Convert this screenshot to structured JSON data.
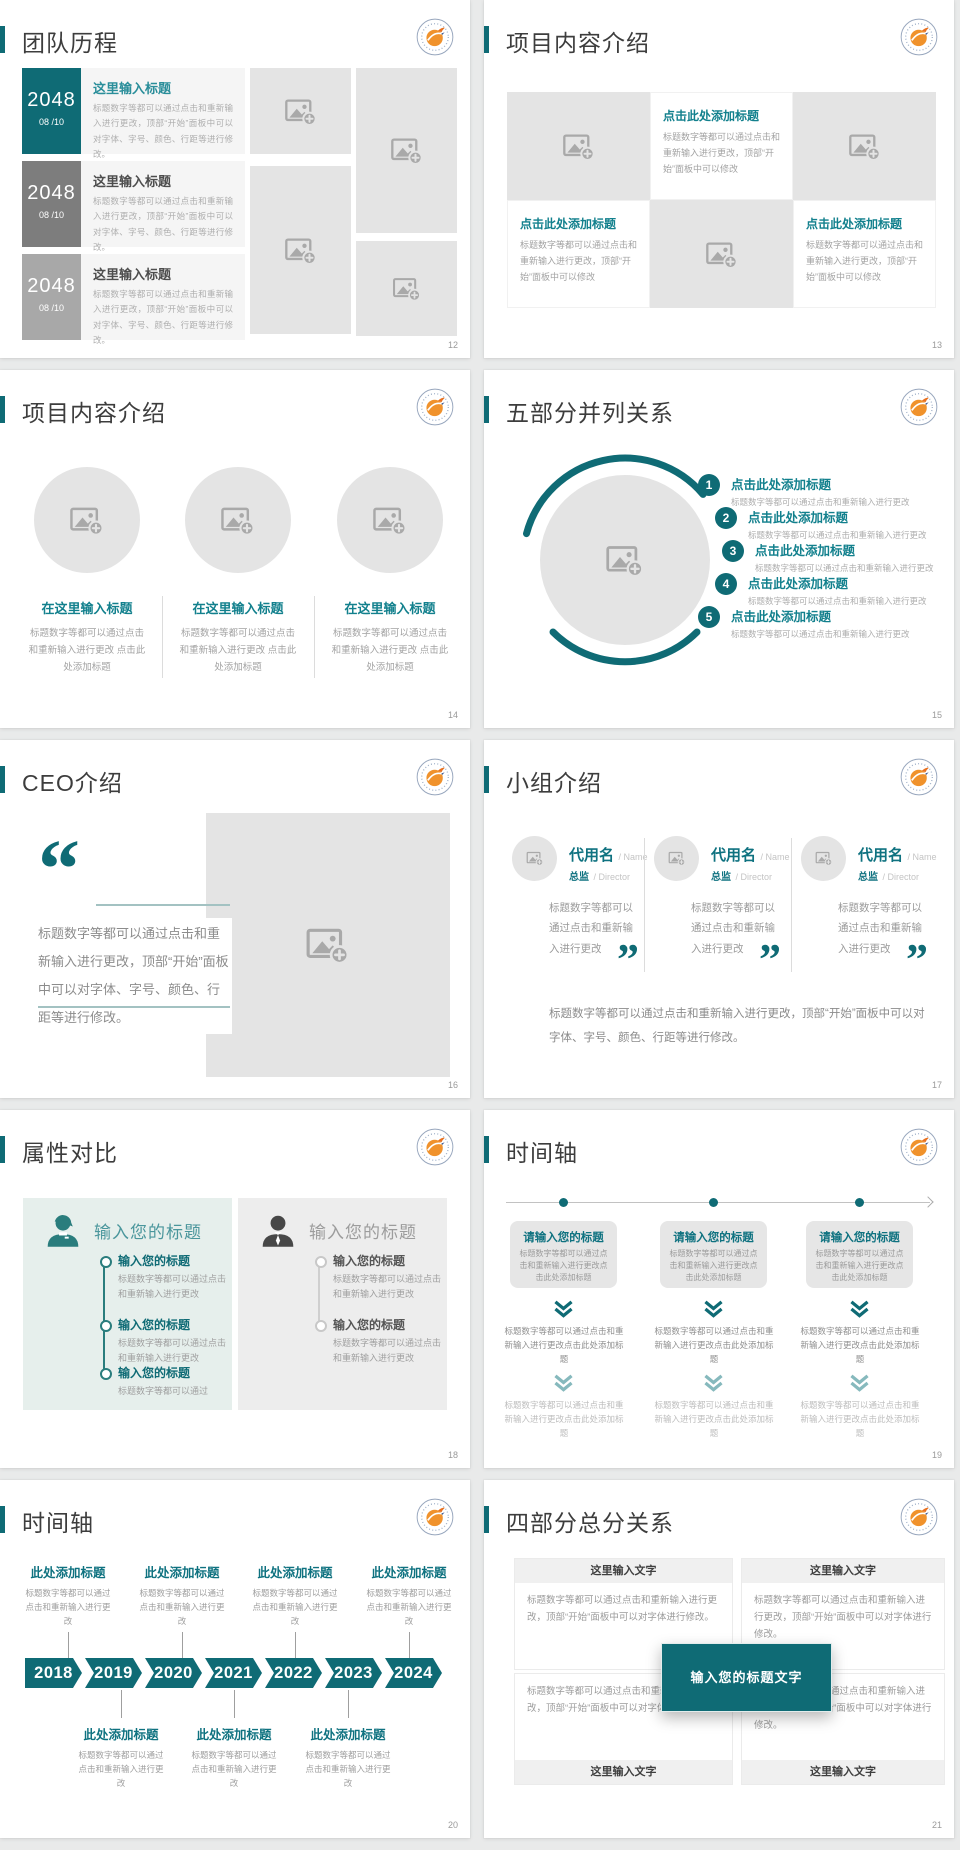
{
  "app": {
    "background": "#e9eaea",
    "accent_color": "#0f6b75"
  },
  "common": {
    "quote_open": "“",
    "quote_close": "”",
    "heading_here": "这里输入标题",
    "heading_click": "点击此处添加标题",
    "heading_add": "此处添加标题",
    "heading_your": "输入您的标题",
    "heading_please": "请输入您的标题",
    "heading_text": "这里输入文字",
    "heading_center": "输入您的标题文字",
    "heading_circle": "在这里输入标题",
    "body_full": "标题数字等都可以通过点击和重新输入进行更改，顶部“开始”面板中可以对字体、字号、颜色、行距等进行修改。",
    "body_mid": "标题数字等都可以通过点击和重新输入进行更改，顶部“开始”面板中可以修改",
    "body_short": "标题数字等都可以通过点击和重新输入进行更改",
    "body_click": "标题数字等都可以通过点击和重新输入进行更改点击此处添加标题",
    "body_s14": "标题数字等都可以通过点击和重新输入进行更改 点击此处添加标题",
    "body_font": "标题数字等都可以通过点击和重新输入进行更改，顶部“开始”面板中可以对字体进行修改。",
    "body_tail": "标题数字等都可以通过"
  },
  "slides": {
    "s12": {
      "title": "团队历程",
      "page": "12",
      "rows": [
        {
          "year": "2048",
          "date": "08 /10"
        },
        {
          "year": "2048",
          "date": "08 /10"
        },
        {
          "year": "2048",
          "date": "08 /10"
        }
      ]
    },
    "s13": {
      "title": "项目内容介绍",
      "page": "13"
    },
    "s14": {
      "title": "项目内容介绍",
      "page": "14"
    },
    "s15": {
      "title": "五部分并列关系",
      "page": "15",
      "numbers": [
        "1",
        "2",
        "3",
        "4",
        "5"
      ]
    },
    "s16": {
      "title": "CEO介绍",
      "page": "16"
    },
    "s17": {
      "title": "小组介绍",
      "page": "17",
      "name": "代用名",
      "name_suffix": "/ Name",
      "role": "总监",
      "role_suffix": "/ Director"
    },
    "s18": {
      "title": "属性对比",
      "page": "18"
    },
    "s19": {
      "title": "时间轴",
      "page": "19"
    },
    "s20": {
      "title": "时间轴",
      "page": "20",
      "years": [
        "2018",
        "2019",
        "2020",
        "2021",
        "2022",
        "2023",
        "2024"
      ]
    },
    "s21": {
      "title": "四部分总分关系",
      "page": "21"
    }
  }
}
